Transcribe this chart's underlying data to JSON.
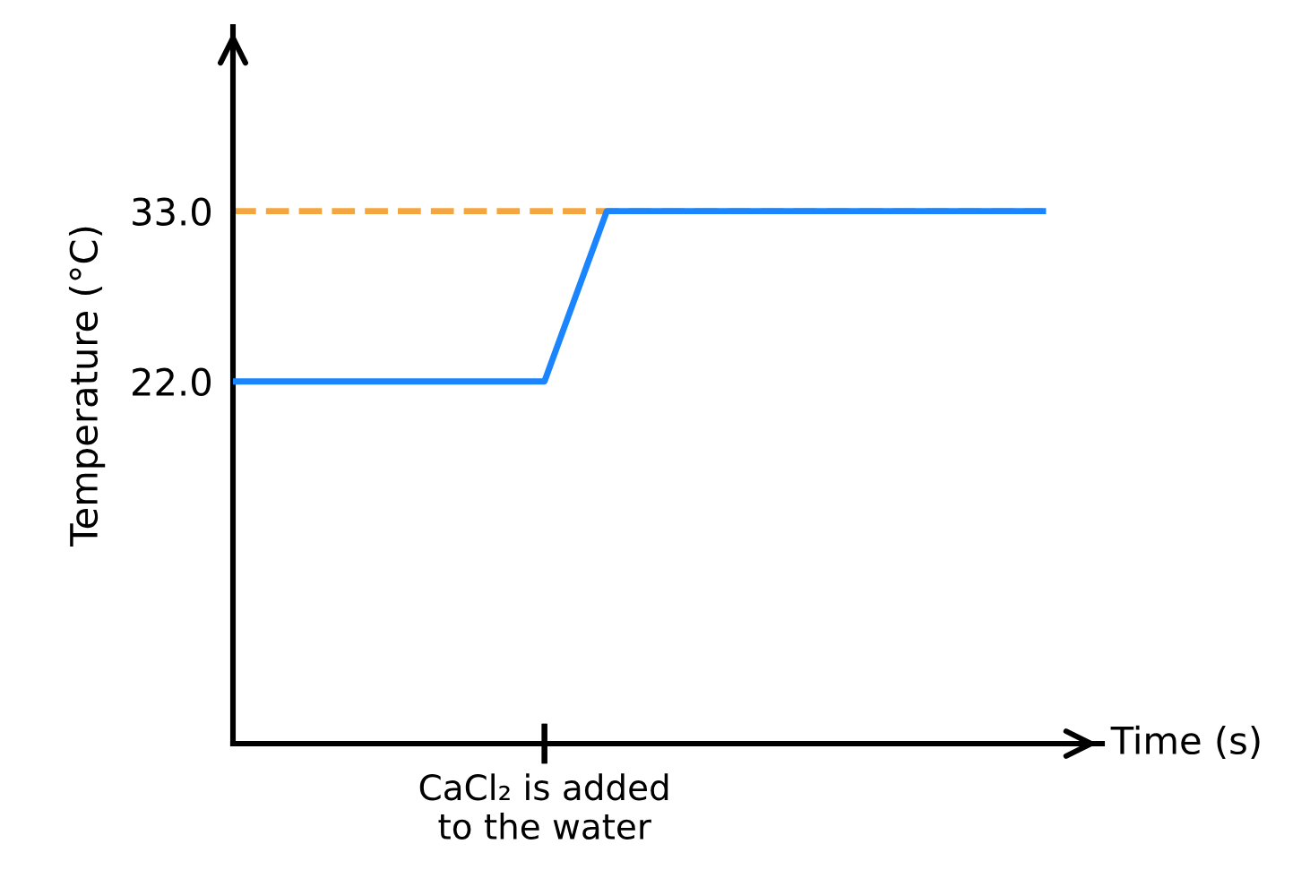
{
  "chart_data": {
    "type": "line",
    "ylabel": "Temperature (°C)",
    "xlabel": "Time (s)",
    "categories": [
      null,
      null,
      null,
      null,
      null,
      "CaCl₂ is added\nto the water",
      null,
      null,
      null,
      null,
      null,
      null,
      null,
      null
    ],
    "series": [
      {
        "color": "#1a85ff",
        "values": [
          22,
          22,
          22,
          22,
          22,
          22,
          33,
          33,
          33,
          33,
          33,
          33,
          33,
          33
        ]
      }
    ],
    "ylim": [
      -1.4,
      44.9
    ],
    "yticks": [
      {
        "value": 22,
        "label": "22.0"
      },
      {
        "value": 33,
        "label": "33.0"
      }
    ],
    "ref_lines": [
      {
        "axis": "y",
        "value": 33,
        "label": null,
        "color": "#f5a540",
        "line_style": "dashed"
      }
    ],
    "grid": false,
    "legend": false,
    "marker": "none",
    "line_style": "solid"
  }
}
